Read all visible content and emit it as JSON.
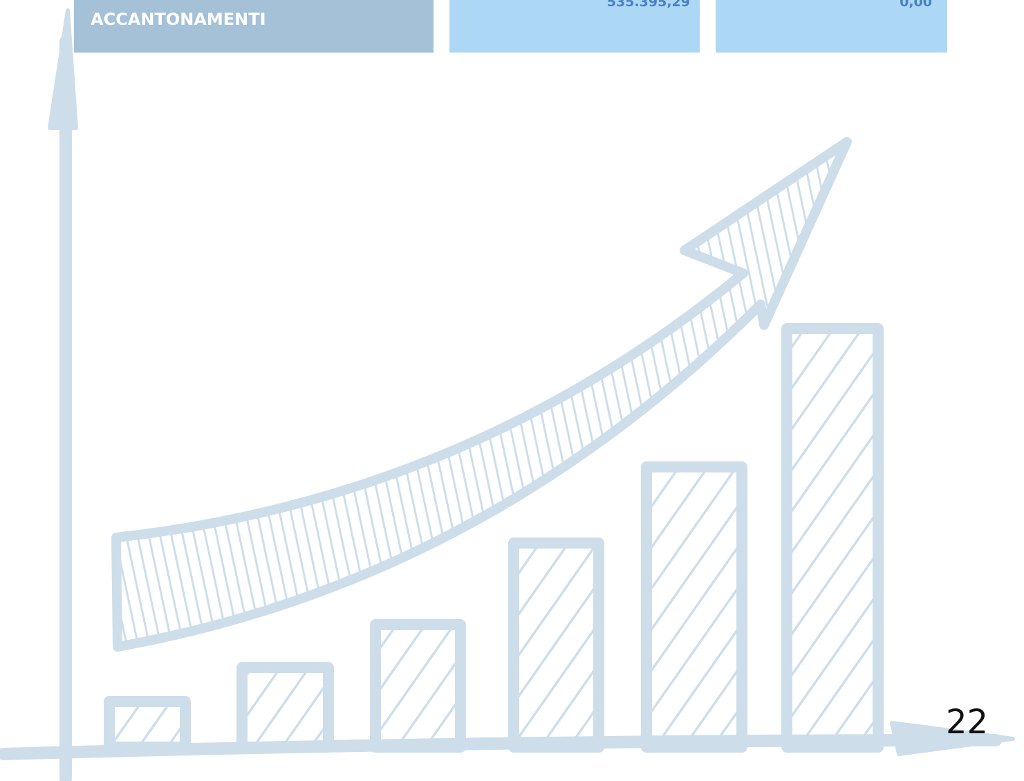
{
  "table": {
    "rows": [
      [
        "ACCANTONAMENTI",
        "535.395,29",
        "0,00"
      ]
    ]
  },
  "page_number": "22"
}
